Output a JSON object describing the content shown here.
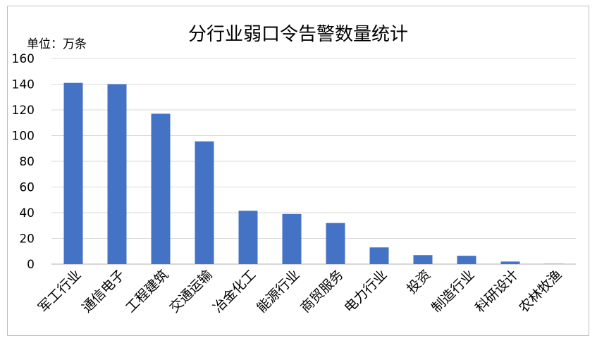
{
  "chart_data": {
    "type": "bar",
    "title": "分行业弱口令告警数量统计",
    "unit_label": "单位：万条",
    "categories": [
      "军工行业",
      "通信电子",
      "工程建筑",
      "交通运输",
      "冶金化工",
      "能源行业",
      "商贸服务",
      "电力行业",
      "投资",
      "制造行业",
      "科研设计",
      "农林牧渔"
    ],
    "values": [
      141,
      140,
      117,
      95.5,
      41.5,
      39,
      32,
      13,
      7,
      6.5,
      2,
      0.2
    ],
    "yticks": [
      0,
      20,
      40,
      60,
      80,
      100,
      120,
      140,
      160
    ],
    "ylim": [
      0,
      160
    ],
    "grid": true,
    "bar_color": "#4472c4",
    "grid_color": "#d9d9d9",
    "axis_color": "#bfbfbf"
  }
}
